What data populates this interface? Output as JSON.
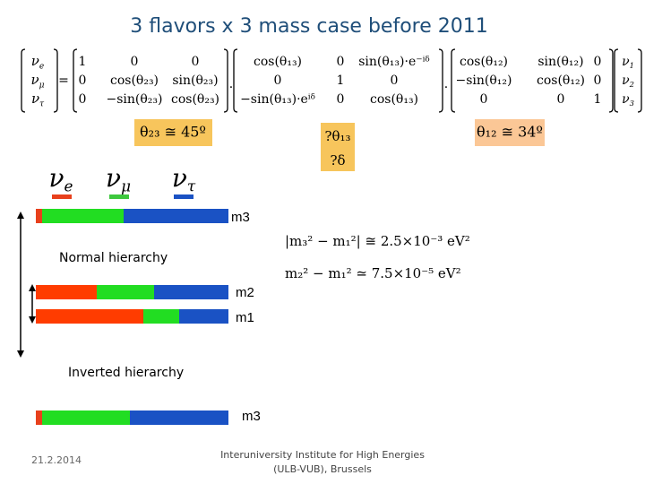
{
  "title": "3 flavors x 3 mass case before 2011",
  "equation": {
    "flavor_vector": [
      {
        "symbol": "ν",
        "sub": "e"
      },
      {
        "symbol": "ν",
        "sub": "μ"
      },
      {
        "symbol": "ν",
        "sub": "τ"
      }
    ],
    "equals": "=",
    "matrices": [
      [
        [
          "1",
          "0",
          "0"
        ],
        [
          "0",
          "cos(θ₂₃)",
          "sin(θ₂₃)"
        ],
        [
          "0",
          "−sin(θ₂₃)",
          "cos(θ₂₃)"
        ]
      ],
      [
        [
          "cos(θ₁₃)",
          "0",
          "sin(θ₁₃)·e⁻ⁱᵟ"
        ],
        [
          "0",
          "1",
          "0"
        ],
        [
          "−sin(θ₁₃)·eⁱᵟ",
          "0",
          "cos(θ₁₃)"
        ]
      ],
      [
        [
          "cos(θ₁₂)",
          "sin(θ₁₂)",
          "0"
        ],
        [
          "−sin(θ₁₂)",
          "cos(θ₁₂)",
          "0"
        ],
        [
          "0",
          "0",
          "1"
        ]
      ]
    ],
    "dot": "·",
    "mass_vector": [
      {
        "symbol": "ν",
        "sub": "1"
      },
      {
        "symbol": "ν",
        "sub": "2"
      },
      {
        "symbol": "ν",
        "sub": "3"
      }
    ]
  },
  "angles": {
    "theta23": "θ₂₃ ≅ 45º",
    "theta13": "?θ₁₃",
    "delta": "?δ",
    "theta12": "θ₁₂ ≅ 34º"
  },
  "flavors": [
    {
      "symbol": "ν",
      "sub": "e"
    },
    {
      "symbol": "ν",
      "sub": "μ"
    },
    {
      "symbol": "ν",
      "sub": "τ"
    }
  ],
  "normal": {
    "label": "Normal hierarchy",
    "m3": "m3",
    "m2": "m2",
    "m1": "m1"
  },
  "inverted": {
    "label": "Inverted hierarchy",
    "m3": "m3"
  },
  "formulas": [
    "|m₃² − m₁²| ≅ 2.5×10⁻³ eV²",
    "m₂² − m₁² ≃ 7.5×10⁻⁵ eV²"
  ],
  "footer": {
    "date": "21.2.2014",
    "institute": [
      "Interuniversity Institute for High Energies",
      "(ULB-VUB), Brussels"
    ]
  }
}
